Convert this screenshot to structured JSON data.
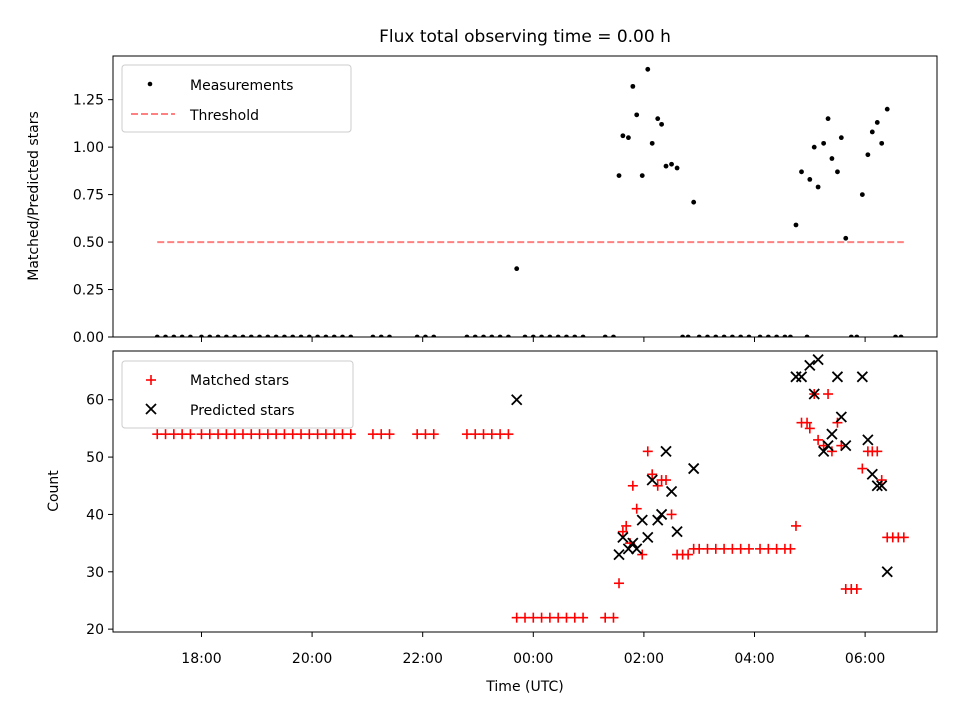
{
  "chart_data": [
    {
      "type": "scatter",
      "title": "Flux total observing time = 0.00 h",
      "ylabel": "Matched/Predicted stars",
      "xlabel": "",
      "ylim": [
        0,
        1.48
      ],
      "yticks": [
        0,
        0.25,
        0.5,
        0.75,
        1.0,
        1.25
      ],
      "ytick_labels": [
        "0.00",
        "0.25",
        "0.50",
        "0.75",
        "1.00",
        "1.25"
      ],
      "x_unit": "hours relative to 00:00 UTC",
      "grid": false,
      "legend_position": "top-left",
      "series": [
        {
          "name": "Measurements",
          "marker": "dot",
          "color": "#000000",
          "points": [
            [
              -6.8,
              0
            ],
            [
              -6.65,
              0
            ],
            [
              -6.5,
              0
            ],
            [
              -6.35,
              0
            ],
            [
              -6.2,
              0
            ],
            [
              -6.0,
              0
            ],
            [
              -5.85,
              0
            ],
            [
              -5.7,
              0
            ],
            [
              -5.55,
              0
            ],
            [
              -5.4,
              0
            ],
            [
              -5.25,
              0
            ],
            [
              -5.1,
              0
            ],
            [
              -4.95,
              0
            ],
            [
              -4.8,
              0
            ],
            [
              -4.65,
              0
            ],
            [
              -4.5,
              0
            ],
            [
              -4.35,
              0
            ],
            [
              -4.2,
              0
            ],
            [
              -4.05,
              0
            ],
            [
              -3.9,
              0
            ],
            [
              -3.75,
              0
            ],
            [
              -3.6,
              0
            ],
            [
              -3.45,
              0
            ],
            [
              -3.3,
              0
            ],
            [
              -2.9,
              0
            ],
            [
              -2.75,
              0
            ],
            [
              -2.6,
              0
            ],
            [
              -2.1,
              0
            ],
            [
              -1.95,
              0
            ],
            [
              -1.8,
              0
            ],
            [
              -1.2,
              0
            ],
            [
              -1.05,
              0
            ],
            [
              -0.9,
              0
            ],
            [
              -0.75,
              0
            ],
            [
              -0.6,
              0
            ],
            [
              -0.45,
              0
            ],
            [
              -0.3,
              0.36
            ],
            [
              -0.15,
              0
            ],
            [
              0.0,
              0
            ],
            [
              0.15,
              0
            ],
            [
              0.3,
              0
            ],
            [
              0.45,
              0
            ],
            [
              0.6,
              0
            ],
            [
              0.75,
              0
            ],
            [
              0.9,
              0
            ],
            [
              1.3,
              0
            ],
            [
              1.45,
              0
            ],
            [
              1.55,
              0.85
            ],
            [
              1.62,
              1.06
            ],
            [
              1.72,
              1.05
            ],
            [
              1.8,
              1.32
            ],
            [
              1.87,
              1.17
            ],
            [
              1.97,
              0.85
            ],
            [
              2.07,
              1.41
            ],
            [
              2.15,
              1.02
            ],
            [
              2.25,
              1.15
            ],
            [
              2.32,
              1.12
            ],
            [
              2.4,
              0.9
            ],
            [
              2.5,
              0.91
            ],
            [
              2.6,
              0.89
            ],
            [
              2.9,
              0.71
            ],
            [
              2.7,
              0
            ],
            [
              2.8,
              0
            ],
            [
              3.0,
              0
            ],
            [
              3.15,
              0
            ],
            [
              3.3,
              0
            ],
            [
              3.45,
              0
            ],
            [
              3.6,
              0
            ],
            [
              3.75,
              0
            ],
            [
              3.9,
              0
            ],
            [
              4.1,
              0
            ],
            [
              4.25,
              0
            ],
            [
              4.4,
              0
            ],
            [
              4.55,
              0
            ],
            [
              4.65,
              0
            ],
            [
              4.75,
              0.59
            ],
            [
              4.85,
              0.87
            ],
            [
              5.0,
              0.83
            ],
            [
              5.08,
              1.0
            ],
            [
              5.15,
              0.79
            ],
            [
              5.25,
              1.02
            ],
            [
              5.33,
              1.15
            ],
            [
              5.4,
              0.94
            ],
            [
              5.5,
              0.87
            ],
            [
              5.57,
              1.05
            ],
            [
              5.65,
              0.52
            ],
            [
              5.95,
              0.75
            ],
            [
              6.05,
              0.96
            ],
            [
              6.13,
              1.08
            ],
            [
              6.22,
              1.13
            ],
            [
              6.3,
              1.02
            ],
            [
              6.4,
              1.2
            ],
            [
              4.95,
              0
            ],
            [
              5.75,
              0
            ],
            [
              5.85,
              0
            ],
            [
              6.55,
              0
            ],
            [
              6.65,
              0
            ]
          ]
        },
        {
          "name": "Threshold",
          "marker": "dashed-line",
          "color": "#ff8080",
          "x": [
            -6.8,
            6.7
          ],
          "y": [
            0.5,
            0.5
          ]
        }
      ]
    },
    {
      "type": "scatter",
      "title": "",
      "ylabel": "Count",
      "xlabel": "Time (UTC)",
      "xlim": [
        -7.6,
        7.3
      ],
      "xticks": [
        -6,
        -4,
        -2,
        0,
        2,
        4,
        6
      ],
      "xtick_labels": [
        "18:00",
        "20:00",
        "22:00",
        "00:00",
        "02:00",
        "04:00",
        "06:00"
      ],
      "ylim": [
        19.5,
        68.5
      ],
      "yticks": [
        20,
        30,
        40,
        50,
        60
      ],
      "ytick_labels": [
        "20",
        "30",
        "40",
        "50",
        "60"
      ],
      "grid": false,
      "legend_position": "top-left",
      "series": [
        {
          "name": "Matched stars",
          "marker": "plus",
          "color": "#ff0000",
          "points": [
            [
              -6.8,
              54
            ],
            [
              -6.65,
              54
            ],
            [
              -6.5,
              54
            ],
            [
              -6.35,
              54
            ],
            [
              -6.2,
              54
            ],
            [
              -6.0,
              54
            ],
            [
              -5.85,
              54
            ],
            [
              -5.7,
              54
            ],
            [
              -5.55,
              54
            ],
            [
              -5.4,
              54
            ],
            [
              -5.25,
              54
            ],
            [
              -5.1,
              54
            ],
            [
              -4.95,
              54
            ],
            [
              -4.8,
              54
            ],
            [
              -4.65,
              54
            ],
            [
              -4.5,
              54
            ],
            [
              -4.35,
              54
            ],
            [
              -4.2,
              54
            ],
            [
              -4.05,
              54
            ],
            [
              -3.9,
              54
            ],
            [
              -3.75,
              54
            ],
            [
              -3.6,
              54
            ],
            [
              -3.45,
              54
            ],
            [
              -3.3,
              54
            ],
            [
              -2.9,
              54
            ],
            [
              -2.75,
              54
            ],
            [
              -2.6,
              54
            ],
            [
              -2.1,
              54
            ],
            [
              -1.95,
              54
            ],
            [
              -1.8,
              54
            ],
            [
              -1.2,
              54
            ],
            [
              -1.05,
              54
            ],
            [
              -0.9,
              54
            ],
            [
              -0.75,
              54
            ],
            [
              -0.6,
              54
            ],
            [
              -0.45,
              54
            ],
            [
              -0.3,
              22
            ],
            [
              -0.15,
              22
            ],
            [
              0.0,
              22
            ],
            [
              0.15,
              22
            ],
            [
              0.3,
              22
            ],
            [
              0.45,
              22
            ],
            [
              0.6,
              22
            ],
            [
              0.75,
              22
            ],
            [
              0.9,
              22
            ],
            [
              1.3,
              22
            ],
            [
              1.45,
              22
            ],
            [
              1.55,
              28
            ],
            [
              1.62,
              37
            ],
            [
              1.68,
              38
            ],
            [
              1.75,
              35
            ],
            [
              1.8,
              45
            ],
            [
              1.87,
              41
            ],
            [
              1.97,
              33
            ],
            [
              2.07,
              51
            ],
            [
              2.15,
              47
            ],
            [
              2.25,
              45
            ],
            [
              2.32,
              46
            ],
            [
              2.4,
              46
            ],
            [
              2.5,
              40
            ],
            [
              2.6,
              33
            ],
            [
              2.7,
              33
            ],
            [
              2.8,
              33
            ],
            [
              2.9,
              34
            ],
            [
              3.0,
              34
            ],
            [
              3.15,
              34
            ],
            [
              3.3,
              34
            ],
            [
              3.45,
              34
            ],
            [
              3.6,
              34
            ],
            [
              3.75,
              34
            ],
            [
              3.9,
              34
            ],
            [
              4.1,
              34
            ],
            [
              4.25,
              34
            ],
            [
              4.4,
              34
            ],
            [
              4.55,
              34
            ],
            [
              4.65,
              34
            ],
            [
              4.75,
              38
            ],
            [
              4.85,
              56
            ],
            [
              4.95,
              56
            ],
            [
              5.0,
              55
            ],
            [
              5.08,
              61
            ],
            [
              5.15,
              53
            ],
            [
              5.25,
              52
            ],
            [
              5.33,
              61
            ],
            [
              5.4,
              51
            ],
            [
              5.5,
              56
            ],
            [
              5.57,
              52
            ],
            [
              5.65,
              27
            ],
            [
              5.75,
              27
            ],
            [
              5.85,
              27
            ],
            [
              5.95,
              48
            ],
            [
              6.05,
              51
            ],
            [
              6.13,
              51
            ],
            [
              6.22,
              51
            ],
            [
              6.3,
              46
            ],
            [
              6.4,
              36
            ],
            [
              6.5,
              36
            ],
            [
              6.6,
              36
            ],
            [
              6.7,
              36
            ]
          ]
        },
        {
          "name": "Predicted stars",
          "marker": "x",
          "color": "#000000",
          "points": [
            [
              -0.3,
              60
            ],
            [
              1.55,
              33
            ],
            [
              1.62,
              36
            ],
            [
              1.72,
              34
            ],
            [
              1.8,
              35
            ],
            [
              1.87,
              34
            ],
            [
              1.97,
              39
            ],
            [
              2.07,
              36
            ],
            [
              2.15,
              46
            ],
            [
              2.25,
              39
            ],
            [
              2.32,
              40
            ],
            [
              2.4,
              51
            ],
            [
              2.5,
              44
            ],
            [
              2.6,
              37
            ],
            [
              2.9,
              48
            ],
            [
              4.75,
              64
            ],
            [
              4.85,
              64
            ],
            [
              5.0,
              66
            ],
            [
              5.08,
              61
            ],
            [
              5.15,
              67
            ],
            [
              5.25,
              51
            ],
            [
              5.33,
              52
            ],
            [
              5.4,
              54
            ],
            [
              5.5,
              64
            ],
            [
              5.57,
              57
            ],
            [
              5.65,
              52
            ],
            [
              5.95,
              64
            ],
            [
              6.05,
              53
            ],
            [
              6.13,
              47
            ],
            [
              6.22,
              45
            ],
            [
              6.3,
              45
            ],
            [
              6.4,
              30
            ]
          ]
        }
      ]
    }
  ]
}
